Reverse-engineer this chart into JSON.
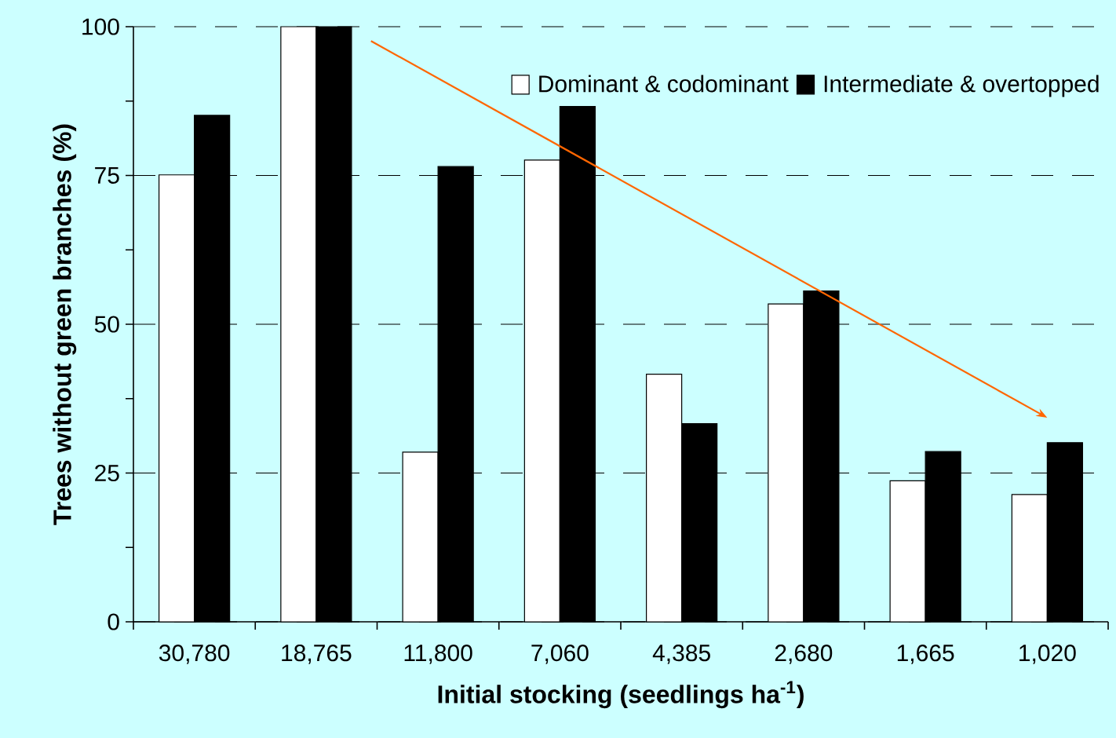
{
  "chart_data": {
    "type": "bar",
    "xlabel": "Initial stocking (seedlings ha$^{-1}$)",
    "ylabel": "Trees without green branches (%)",
    "categories": [
      "30,780",
      "18,765",
      "11,800",
      "7,060",
      "4,385",
      "2,680",
      "1,665",
      "1,020"
    ],
    "series": [
      {
        "name": "Dominant & codominant",
        "color": "#ffffff",
        "values": [
          75.1,
          100,
          28.5,
          77.6,
          41.6,
          53.4,
          23.7,
          21.4
        ]
      },
      {
        "name": "Intermediate & overtopped",
        "color": "#000000",
        "values": [
          85.1,
          100,
          76.5,
          86.6,
          33.3,
          55.6,
          28.6,
          30.1
        ]
      }
    ],
    "ylim": [
      0,
      100
    ],
    "yticks": [
      0,
      {
        "value": 12.5,
        "label": null
      },
      25,
      {
        "value": 37.5,
        "label": null
      },
      50,
      {
        "value": 62.5,
        "label": null
      },
      75,
      {
        "value": 87.5,
        "label": null
      },
      100
    ],
    "grid": "y",
    "legend": "top right"
  }
}
